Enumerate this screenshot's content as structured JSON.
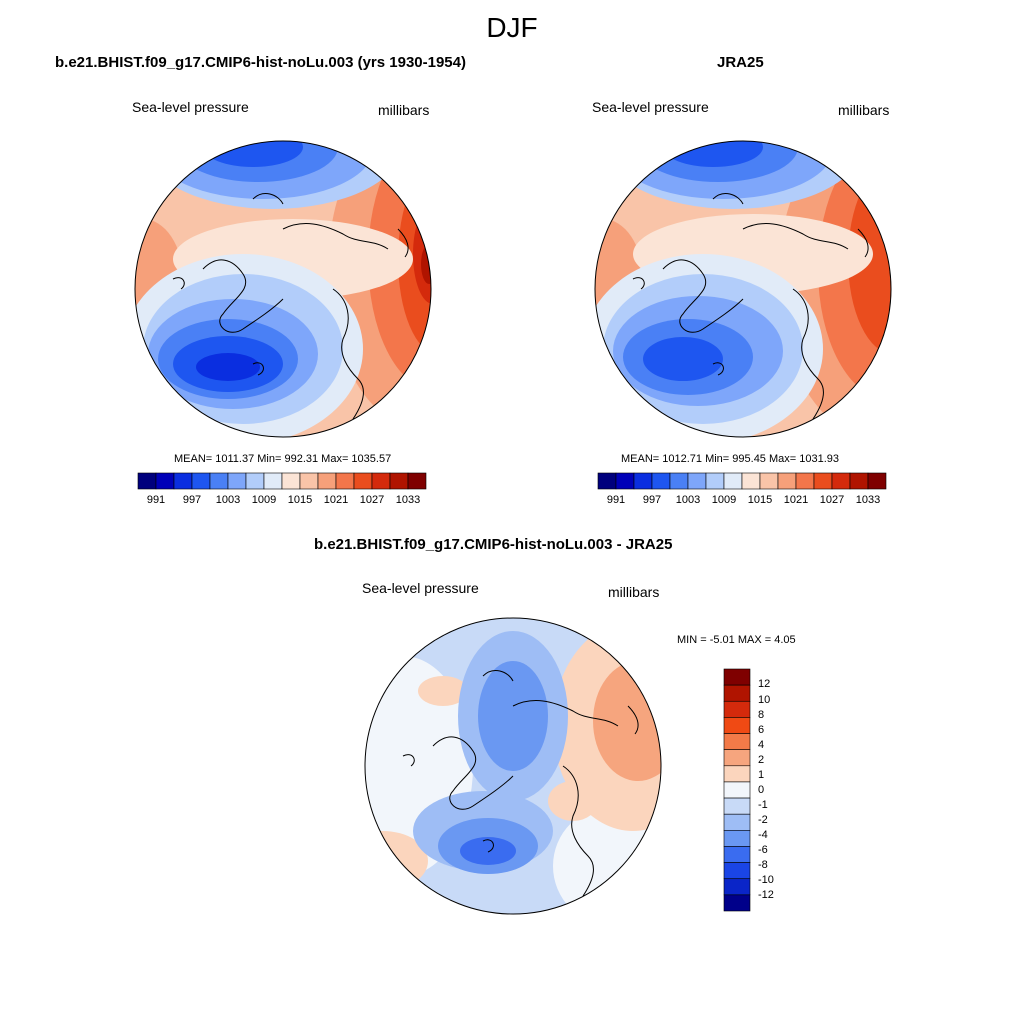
{
  "figure": {
    "title": "DJF",
    "left_panel": {
      "title": "b.e21.BHIST.f09_g17.CMIP6-hist-noLu.003 (yrs 1930-1954)",
      "variable": "Sea-level pressure",
      "units": "millibars",
      "stats": "MEAN= 1011.37  Min= 992.31  Max= 1035.57"
    },
    "right_panel": {
      "title": "JRA25",
      "variable": "Sea-level pressure",
      "units": "millibars",
      "stats": "MEAN= 1012.71  Min= 995.45  Max= 1031.93"
    },
    "diff_panel": {
      "title": "b.e21.BHIST.f09_g17.CMIP6-hist-noLu.003 - JRA25",
      "variable": "Sea-level pressure",
      "units": "millibars",
      "stats": "MIN =  -5.01 MAX =   4.05"
    },
    "colorbar_main": {
      "colors": [
        "#00007d",
        "#0000b8",
        "#0a2ee0",
        "#1e56f0",
        "#4a80f5",
        "#7ea6fa",
        "#b2cdfa",
        "#e1ebf8",
        "#fbe4d6",
        "#f9c4a8",
        "#f6a07a",
        "#f3764b",
        "#ea4d1e",
        "#d42a0c",
        "#b01400",
        "#7f0000"
      ],
      "tick_labels": [
        "991",
        "997",
        "1003",
        "1009",
        "1015",
        "1021",
        "1027",
        "1033"
      ]
    },
    "colorbar_diff": {
      "colors": [
        "#7f0000",
        "#b01400",
        "#d42a0c",
        "#f04a14",
        "#f37a48",
        "#f6a57e",
        "#fbd5bd",
        "#f2f6fb",
        "#c8daf7",
        "#9ebdf5",
        "#6a98f2",
        "#3a6cf0",
        "#1a45e6",
        "#0a25c8",
        "#00008a"
      ],
      "tick_labels": [
        "12",
        "10",
        "8",
        "6",
        "4",
        "2",
        "1",
        "0",
        "-1",
        "-2",
        "-4",
        "-6",
        "-8",
        "-10",
        "-12"
      ]
    }
  }
}
